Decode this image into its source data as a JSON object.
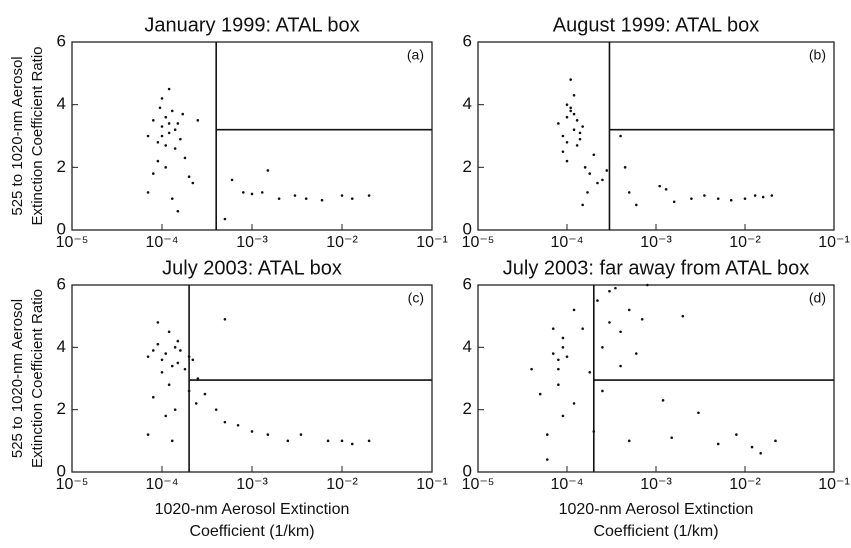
{
  "chart_data": [
    {
      "type": "scatter",
      "title": "January 1999: ATAL box",
      "panel_label": "(a)",
      "y_label": [
        "525 to 1020-nm Aerosol",
        "Extinction Coefficient Ratio"
      ],
      "xlim": [
        1e-05,
        0.1
      ],
      "xscale": "log",
      "ylim": [
        0,
        6
      ],
      "xticks": [
        {
          "value": 1e-05,
          "label": "10⁻⁵"
        },
        {
          "value": 0.0001,
          "label": "10⁻⁴"
        },
        {
          "value": 0.001,
          "label": "10⁻³"
        },
        {
          "value": 0.01,
          "label": "10⁻²"
        },
        {
          "value": 0.1,
          "label": "10⁻¹"
        }
      ],
      "yticks": [
        0,
        2,
        4,
        6
      ],
      "vline": 0.0004,
      "hline": 3.2,
      "series": [
        {
          "color": "#111111",
          "x": [
            7e-05,
            8e-05,
            9e-05,
            0.0001,
            0.00011,
            0.00012,
            0.00013,
            0.00014,
            0.00015,
            0.0001,
            0.00012,
            9e-05,
            8e-05,
            0.00011,
            0.00016,
            0.00018,
            0.0002,
            7e-05,
            0.00013,
            0.00015,
            0.0001,
            0.00012,
            0.00011,
            9.5e-05,
            0.00014,
            0.00022,
            0.00025,
            0.00017,
            0.0005,
            0.0006,
            0.0008,
            0.001,
            0.0013,
            0.0015,
            0.002,
            0.003,
            0.004,
            0.006,
            0.01,
            0.013,
            0.02
          ],
          "values": [
            3.0,
            3.5,
            2.8,
            3.3,
            3.6,
            3.1,
            3.8,
            2.6,
            3.4,
            4.2,
            4.5,
            2.2,
            1.8,
            2.0,
            2.9,
            2.3,
            1.7,
            1.2,
            1.0,
            0.6,
            3.0,
            3.4,
            2.7,
            3.9,
            3.2,
            1.5,
            3.5,
            3.7,
            0.35,
            1.6,
            1.2,
            1.15,
            1.2,
            1.9,
            1.0,
            1.1,
            1.0,
            0.95,
            1.1,
            1.0,
            1.1
          ]
        }
      ]
    },
    {
      "type": "scatter",
      "title": "August 1999: ATAL box",
      "panel_label": "(b)",
      "xlim": [
        1e-05,
        0.1
      ],
      "xscale": "log",
      "ylim": [
        0,
        6
      ],
      "xticks": [
        {
          "value": 1e-05,
          "label": "10⁻⁵"
        },
        {
          "value": 0.0001,
          "label": "10⁻⁴"
        },
        {
          "value": 0.001,
          "label": "10⁻³"
        },
        {
          "value": 0.01,
          "label": "10⁻²"
        },
        {
          "value": 0.1,
          "label": "10⁻¹"
        }
      ],
      "yticks": [
        0,
        2,
        4,
        6
      ],
      "vline": 0.0003,
      "hline": 3.2,
      "series": [
        {
          "color": "#111111",
          "x": [
            8e-05,
            9e-05,
            0.0001,
            0.00011,
            0.00012,
            0.00013,
            0.00014,
            0.00015,
            0.0001,
            0.00011,
            0.00012,
            9e-05,
            0.0001,
            0.00013,
            0.00016,
            0.00018,
            0.0002,
            0.00022,
            0.00025,
            0.00012,
            0.00014,
            0.00011,
            0.0001,
            0.00017,
            0.00015,
            0.00028,
            0.0004,
            0.00045,
            0.0005,
            0.0006,
            0.0011,
            0.0013,
            0.0016,
            0.0025,
            0.0035,
            0.005,
            0.007,
            0.01,
            0.013,
            0.016,
            0.02
          ],
          "values": [
            3.4,
            3.0,
            3.6,
            3.8,
            3.2,
            3.5,
            2.9,
            3.3,
            4.0,
            4.8,
            4.3,
            2.5,
            2.2,
            2.7,
            2.0,
            1.8,
            2.4,
            1.5,
            1.6,
            3.7,
            3.1,
            3.9,
            2.8,
            1.2,
            0.8,
            1.9,
            3.0,
            2.0,
            1.2,
            0.8,
            1.4,
            1.3,
            0.9,
            1.0,
            1.1,
            1.0,
            0.95,
            1.0,
            1.1,
            1.05,
            1.1
          ]
        }
      ]
    },
    {
      "type": "scatter",
      "title": "July 2003: ATAL box",
      "panel_label": "(c)",
      "y_label": [
        "525 to 1020-nm Aerosol",
        "Extinction Coefficient Ratio"
      ],
      "x_label": [
        "1020-nm Aerosol Extinction",
        "Coefficient (1/km)"
      ],
      "xlim": [
        1e-05,
        0.1
      ],
      "xscale": "log",
      "ylim": [
        0,
        6
      ],
      "xticks": [
        {
          "value": 1e-05,
          "label": "10⁻⁵"
        },
        {
          "value": 0.0001,
          "label": "10⁻⁴"
        },
        {
          "value": 0.001,
          "label": "10⁻³"
        },
        {
          "value": 0.01,
          "label": "10⁻²"
        },
        {
          "value": 0.1,
          "label": "10⁻¹"
        }
      ],
      "yticks": [
        0,
        2,
        4,
        6
      ],
      "vline": 0.0002,
      "hline": 2.95,
      "series": [
        {
          "color": "#111111",
          "x": [
            7e-05,
            8e-05,
            9e-05,
            0.0001,
            0.00011,
            0.00012,
            0.00013,
            0.00014,
            0.00015,
            0.00016,
            0.00018,
            0.0002,
            0.00022,
            0.00025,
            9e-05,
            0.0001,
            0.00012,
            7e-05,
            8e-05,
            0.00014,
            0.00011,
            0.0002,
            0.00024,
            0.00013,
            0.00015,
            0.0003,
            0.0004,
            0.0005,
            0.0007,
            0.001,
            0.0015,
            0.0025,
            0.0035,
            0.007,
            0.01,
            0.013,
            0.02,
            0.0005
          ],
          "values": [
            3.7,
            3.9,
            4.1,
            3.6,
            3.8,
            4.5,
            3.4,
            4.0,
            3.5,
            3.9,
            3.3,
            3.7,
            3.6,
            3.0,
            4.8,
            3.2,
            2.8,
            1.2,
            2.4,
            2.0,
            1.8,
            2.6,
            2.2,
            1.0,
            4.2,
            2.5,
            2.0,
            1.6,
            1.5,
            1.3,
            1.2,
            1.0,
            1.2,
            1.0,
            1.0,
            0.9,
            1.0,
            4.9
          ]
        }
      ]
    },
    {
      "type": "scatter",
      "title": "July 2003: far away from ATAL box",
      "panel_label": "(d)",
      "x_label": [
        "1020-nm Aerosol Extinction",
        "Coefficient (1/km)"
      ],
      "xlim": [
        1e-05,
        0.1
      ],
      "xscale": "log",
      "ylim": [
        0,
        6
      ],
      "xticks": [
        {
          "value": 1e-05,
          "label": "10⁻⁵"
        },
        {
          "value": 0.0001,
          "label": "10⁻⁴"
        },
        {
          "value": 0.001,
          "label": "10⁻³"
        },
        {
          "value": 0.01,
          "label": "10⁻²"
        },
        {
          "value": 0.1,
          "label": "10⁻¹"
        }
      ],
      "yticks": [
        0,
        2,
        4,
        6
      ],
      "vline": 0.0002,
      "hline": 2.95,
      "series": [
        {
          "color": "#111111",
          "x": [
            7e-05,
            8e-05,
            9e-05,
            8e-05,
            9e-05,
            0.0001,
            8e-05,
            9e-05,
            7e-05,
            6e-05,
            5e-05,
            4e-05,
            0.00012,
            0.00015,
            0.00018,
            0.00022,
            0.00025,
            0.0003,
            0.00035,
            0.0004,
            0.0005,
            0.0006,
            0.0007,
            0.0008,
            0.0004,
            0.0005,
            0.00025,
            0.0003,
            0.0012,
            0.0015,
            0.002,
            0.003,
            0.005,
            0.008,
            0.012,
            0.015,
            0.022,
            6e-05,
            0.00012,
            0.0002
          ],
          "values": [
            3.8,
            3.6,
            4.0,
            3.3,
            4.3,
            3.7,
            2.8,
            1.8,
            4.6,
            0.4,
            2.5,
            3.3,
            5.2,
            4.6,
            3.2,
            5.5,
            4.0,
            4.8,
            5.9,
            4.5,
            5.2,
            3.8,
            4.9,
            6.0,
            3.4,
            1.0,
            2.6,
            5.8,
            2.3,
            1.1,
            5.0,
            1.9,
            0.9,
            1.2,
            0.8,
            0.6,
            1.0,
            1.2,
            2.2,
            1.3
          ]
        }
      ]
    }
  ]
}
